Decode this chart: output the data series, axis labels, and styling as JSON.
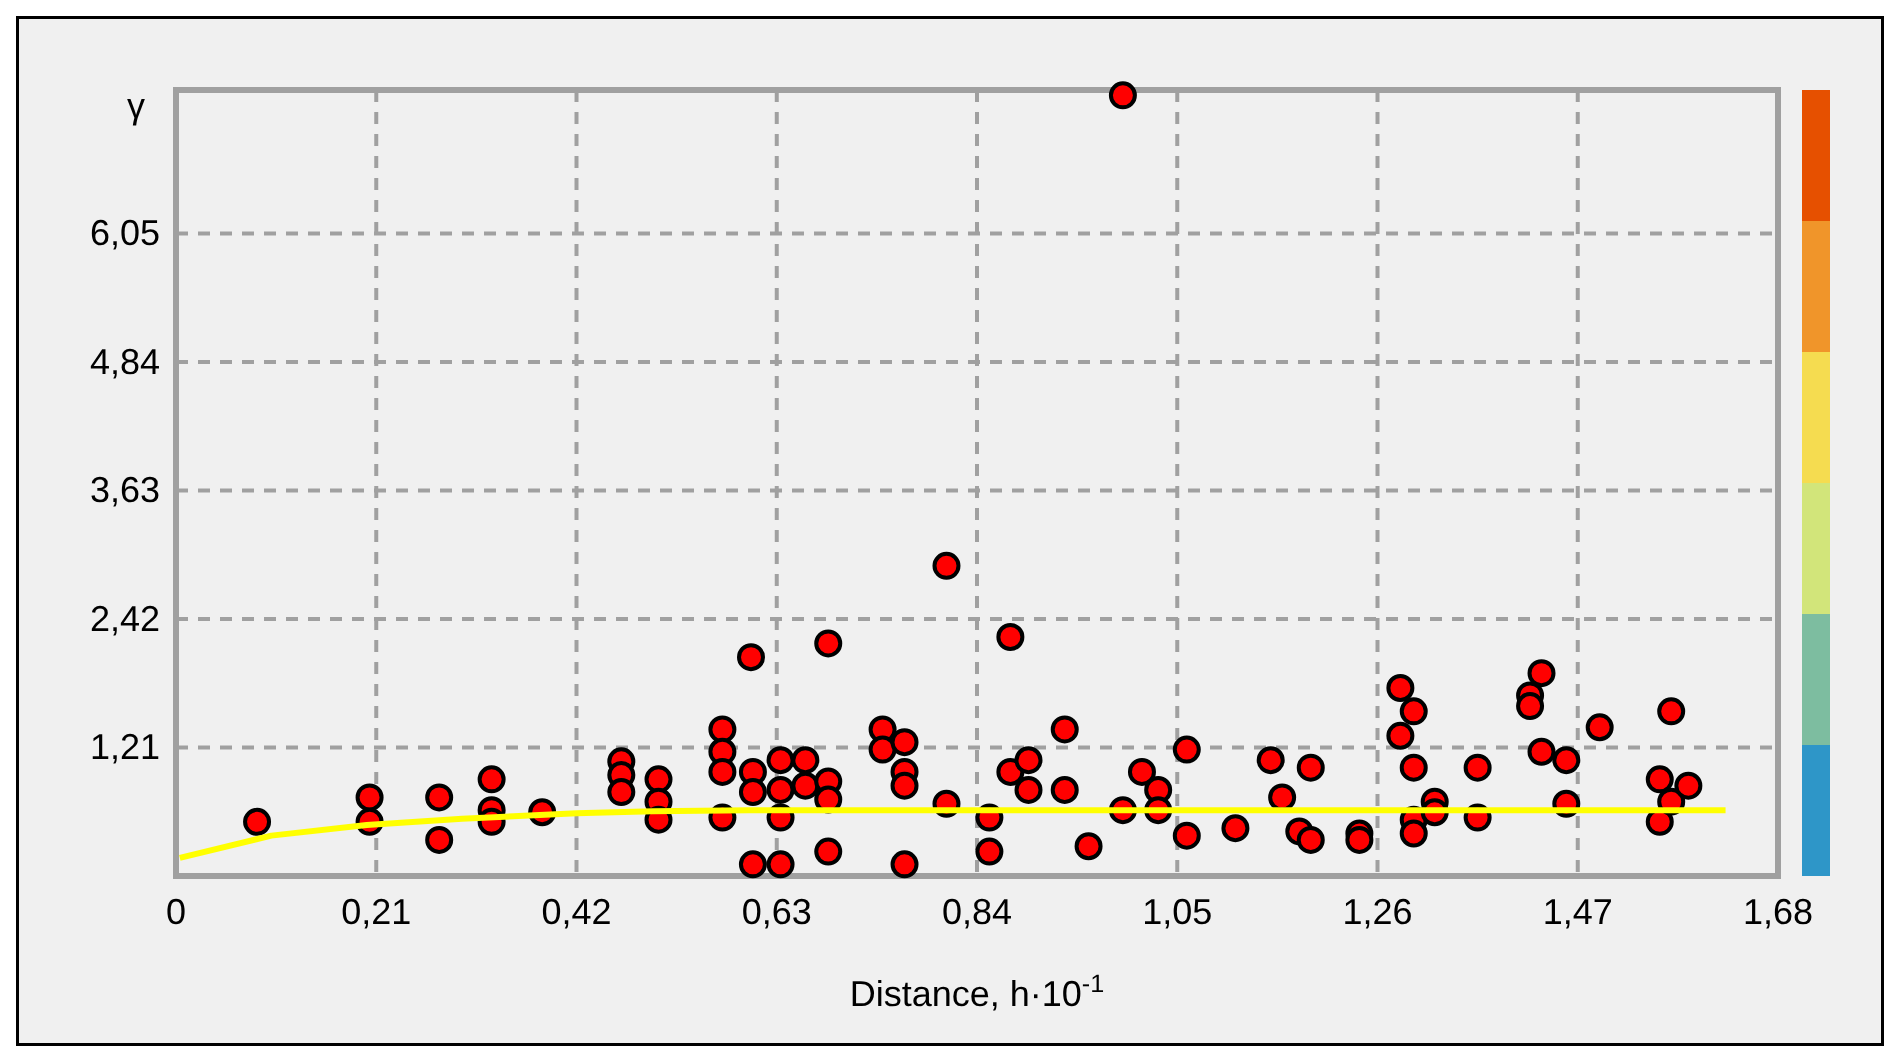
{
  "chart_data": {
    "type": "scatter",
    "xlabel": "Distance, h·10$^{-1}$",
    "ylabel": "γ",
    "xlim": [
      0,
      1.68
    ],
    "ylim": [
      0,
      7.4
    ],
    "xticks": [
      0,
      {
        "value": 0.21,
        "label": "0,21"
      },
      {
        "value": 0.42,
        "label": "0,42"
      },
      {
        "value": 0.63,
        "label": "0,63"
      },
      {
        "value": 0.84,
        "label": "0,84"
      },
      {
        "value": 1.05,
        "label": "1,05"
      },
      {
        "value": 1.26,
        "label": "1,26"
      },
      {
        "value": 1.47,
        "label": "1,47"
      },
      {
        "value": 1.68,
        "label": "1,68"
      }
    ],
    "yticks": [
      {
        "value": 1.21,
        "label": "1,21"
      },
      {
        "value": 2.42,
        "label": "2,42"
      },
      {
        "value": 3.63,
        "label": "3,63"
      },
      {
        "value": 4.84,
        "label": "4,84"
      },
      {
        "value": 6.05,
        "label": "6,05"
      }
    ],
    "grid": true,
    "series": [
      {
        "marker": "circle",
        "color": "#ff0000",
        "x": [
          0.085,
          0.203,
          0.203,
          0.276,
          0.276,
          0.331,
          0.331,
          0.331,
          0.384,
          0.467,
          0.467,
          0.467,
          0.506,
          0.506,
          0.506,
          0.573,
          0.573,
          0.573,
          0.573,
          0.603,
          0.605,
          0.605,
          0.605,
          0.634,
          0.634,
          0.634,
          0.634,
          0.66,
          0.66,
          0.684,
          0.684,
          0.684,
          0.684,
          0.741,
          0.741,
          0.764,
          0.764,
          0.764,
          0.764,
          0.808,
          0.808,
          0.853,
          0.853,
          0.875,
          0.875,
          0.894,
          0.894,
          0.932,
          0.932,
          0.957,
          0.993,
          0.993,
          1.013,
          1.03,
          1.03,
          1.06,
          1.06,
          1.111,
          1.148,
          1.16,
          1.178,
          1.19,
          1.19,
          1.241,
          1.241,
          1.284,
          1.284,
          1.298,
          1.298,
          1.298,
          1.298,
          1.32,
          1.32,
          1.365,
          1.365,
          1.42,
          1.42,
          1.432,
          1.432,
          1.458,
          1.458,
          1.493,
          1.556,
          1.556,
          1.568,
          1.568,
          1.586
        ],
        "values": [
          0.51,
          0.74,
          0.51,
          0.74,
          0.34,
          0.91,
          0.62,
          0.51,
          0.6,
          1.08,
          0.95,
          0.79,
          0.91,
          0.7,
          0.53,
          1.38,
          1.17,
          0.98,
          0.55,
          2.06,
          0.98,
          0.79,
          0.11,
          1.09,
          0.81,
          0.55,
          0.11,
          1.09,
          0.85,
          2.19,
          0.89,
          0.72,
          0.23,
          1.38,
          1.19,
          1.26,
          0.98,
          0.85,
          0.11,
          2.92,
          0.68,
          0.55,
          0.23,
          2.25,
          0.98,
          1.09,
          0.81,
          1.38,
          0.81,
          0.28,
          7.35,
          0.62,
          0.98,
          0.81,
          0.62,
          1.19,
          0.38,
          0.45,
          1.09,
          0.74,
          0.42,
          1.02,
          0.34,
          0.4,
          0.34,
          1.77,
          1.32,
          1.55,
          1.02,
          0.53,
          0.4,
          0.7,
          0.6,
          1.02,
          0.55,
          1.7,
          1.6,
          1.91,
          1.17,
          1.09,
          0.68,
          1.4,
          0.91,
          0.51,
          1.55,
          0.7,
          0.85
        ]
      },
      {
        "type": "line",
        "color": "#ffff00",
        "x": [
          0.004,
          0.1,
          0.2,
          0.3,
          0.42,
          0.5,
          0.6,
          1.625
        ],
        "values": [
          0.17,
          0.38,
          0.48,
          0.54,
          0.59,
          0.61,
          0.62,
          0.62
        ]
      }
    ]
  }
}
